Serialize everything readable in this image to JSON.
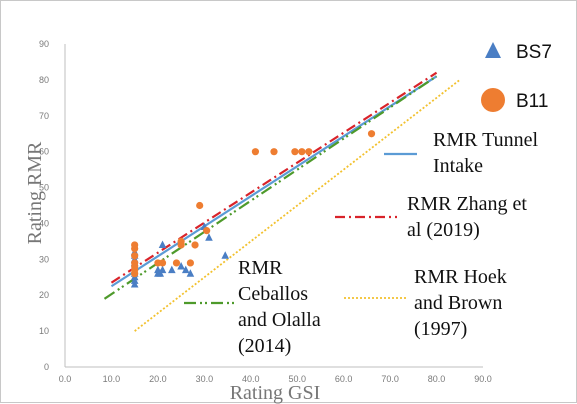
{
  "chart_data": {
    "type": "scatter",
    "xlabel": "Rating GSI",
    "ylabel": "Rating RMR",
    "xlim": [
      0,
      90
    ],
    "ylim": [
      0,
      90
    ],
    "x_ticks": [
      "0.0",
      "10.0",
      "20.0",
      "30.0",
      "40.0",
      "50.0",
      "60.0",
      "70.0",
      "80.0",
      "90.0"
    ],
    "y_ticks": [
      "0",
      "10",
      "20",
      "30",
      "40",
      "50",
      "60",
      "70",
      "80",
      "90"
    ],
    "grid": false,
    "series": [
      {
        "name": "BS7",
        "marker": "triangle",
        "color": "#4a7ec4",
        "points": [
          [
            15,
            23
          ],
          [
            15,
            24
          ],
          [
            15,
            25
          ],
          [
            15,
            26
          ],
          [
            15,
            29
          ],
          [
            15,
            30
          ],
          [
            15,
            31
          ],
          [
            15,
            32
          ],
          [
            20,
            26
          ],
          [
            20,
            27
          ],
          [
            20.5,
            26
          ],
          [
            21,
            27
          ],
          [
            21,
            34
          ],
          [
            23,
            27
          ],
          [
            25,
            28
          ],
          [
            26,
            27
          ],
          [
            27,
            26
          ],
          [
            30,
            39
          ],
          [
            31,
            36
          ],
          [
            34.5,
            31
          ]
        ]
      },
      {
        "name": "B11",
        "marker": "circle",
        "color": "#ee7d31",
        "points": [
          [
            15,
            26
          ],
          [
            15,
            27
          ],
          [
            15,
            28
          ],
          [
            15,
            29
          ],
          [
            15,
            31
          ],
          [
            15,
            33
          ],
          [
            15,
            34
          ],
          [
            20,
            29
          ],
          [
            21,
            29
          ],
          [
            24,
            29
          ],
          [
            25,
            34
          ],
          [
            25,
            35
          ],
          [
            27,
            29
          ],
          [
            28,
            34
          ],
          [
            29,
            45
          ],
          [
            30.5,
            38
          ],
          [
            41,
            60
          ],
          [
            45,
            60
          ],
          [
            49.5,
            60
          ],
          [
            51,
            60
          ],
          [
            52.5,
            60
          ],
          [
            66,
            65
          ]
        ]
      }
    ],
    "lines": [
      {
        "name": "RMR Tunnel Intake",
        "label_lines": [
          "RMR Tunnel",
          "Intake"
        ],
        "color": "#5b9bd5",
        "style": "solid",
        "x": [
          10,
          80
        ],
        "y": [
          22.5,
          81
        ]
      },
      {
        "name": "RMR Zhang et al (2019)",
        "label_lines": [
          "RMR Zhang et",
          "al (2019)"
        ],
        "color": "#d9232a",
        "style": "dashdot",
        "x": [
          10,
          80
        ],
        "y": [
          23.5,
          82
        ]
      },
      {
        "name": "RMR Ceballos and Olalla (2014)",
        "label_lines": [
          "RMR",
          "Ceballos",
          "and Olalla",
          "(2014)"
        ],
        "color": "#4e9a2b",
        "style": "dashdotdot",
        "x": [
          8.5,
          80
        ],
        "y": [
          19,
          81
        ]
      },
      {
        "name": "RMR Hoek and Brown (1997)",
        "label_lines": [
          "RMR Hoek",
          "and Brown",
          "(1997)"
        ],
        "color": "#f2c12e",
        "style": "dotted",
        "x": [
          15,
          85
        ],
        "y": [
          10,
          80
        ]
      }
    ]
  }
}
